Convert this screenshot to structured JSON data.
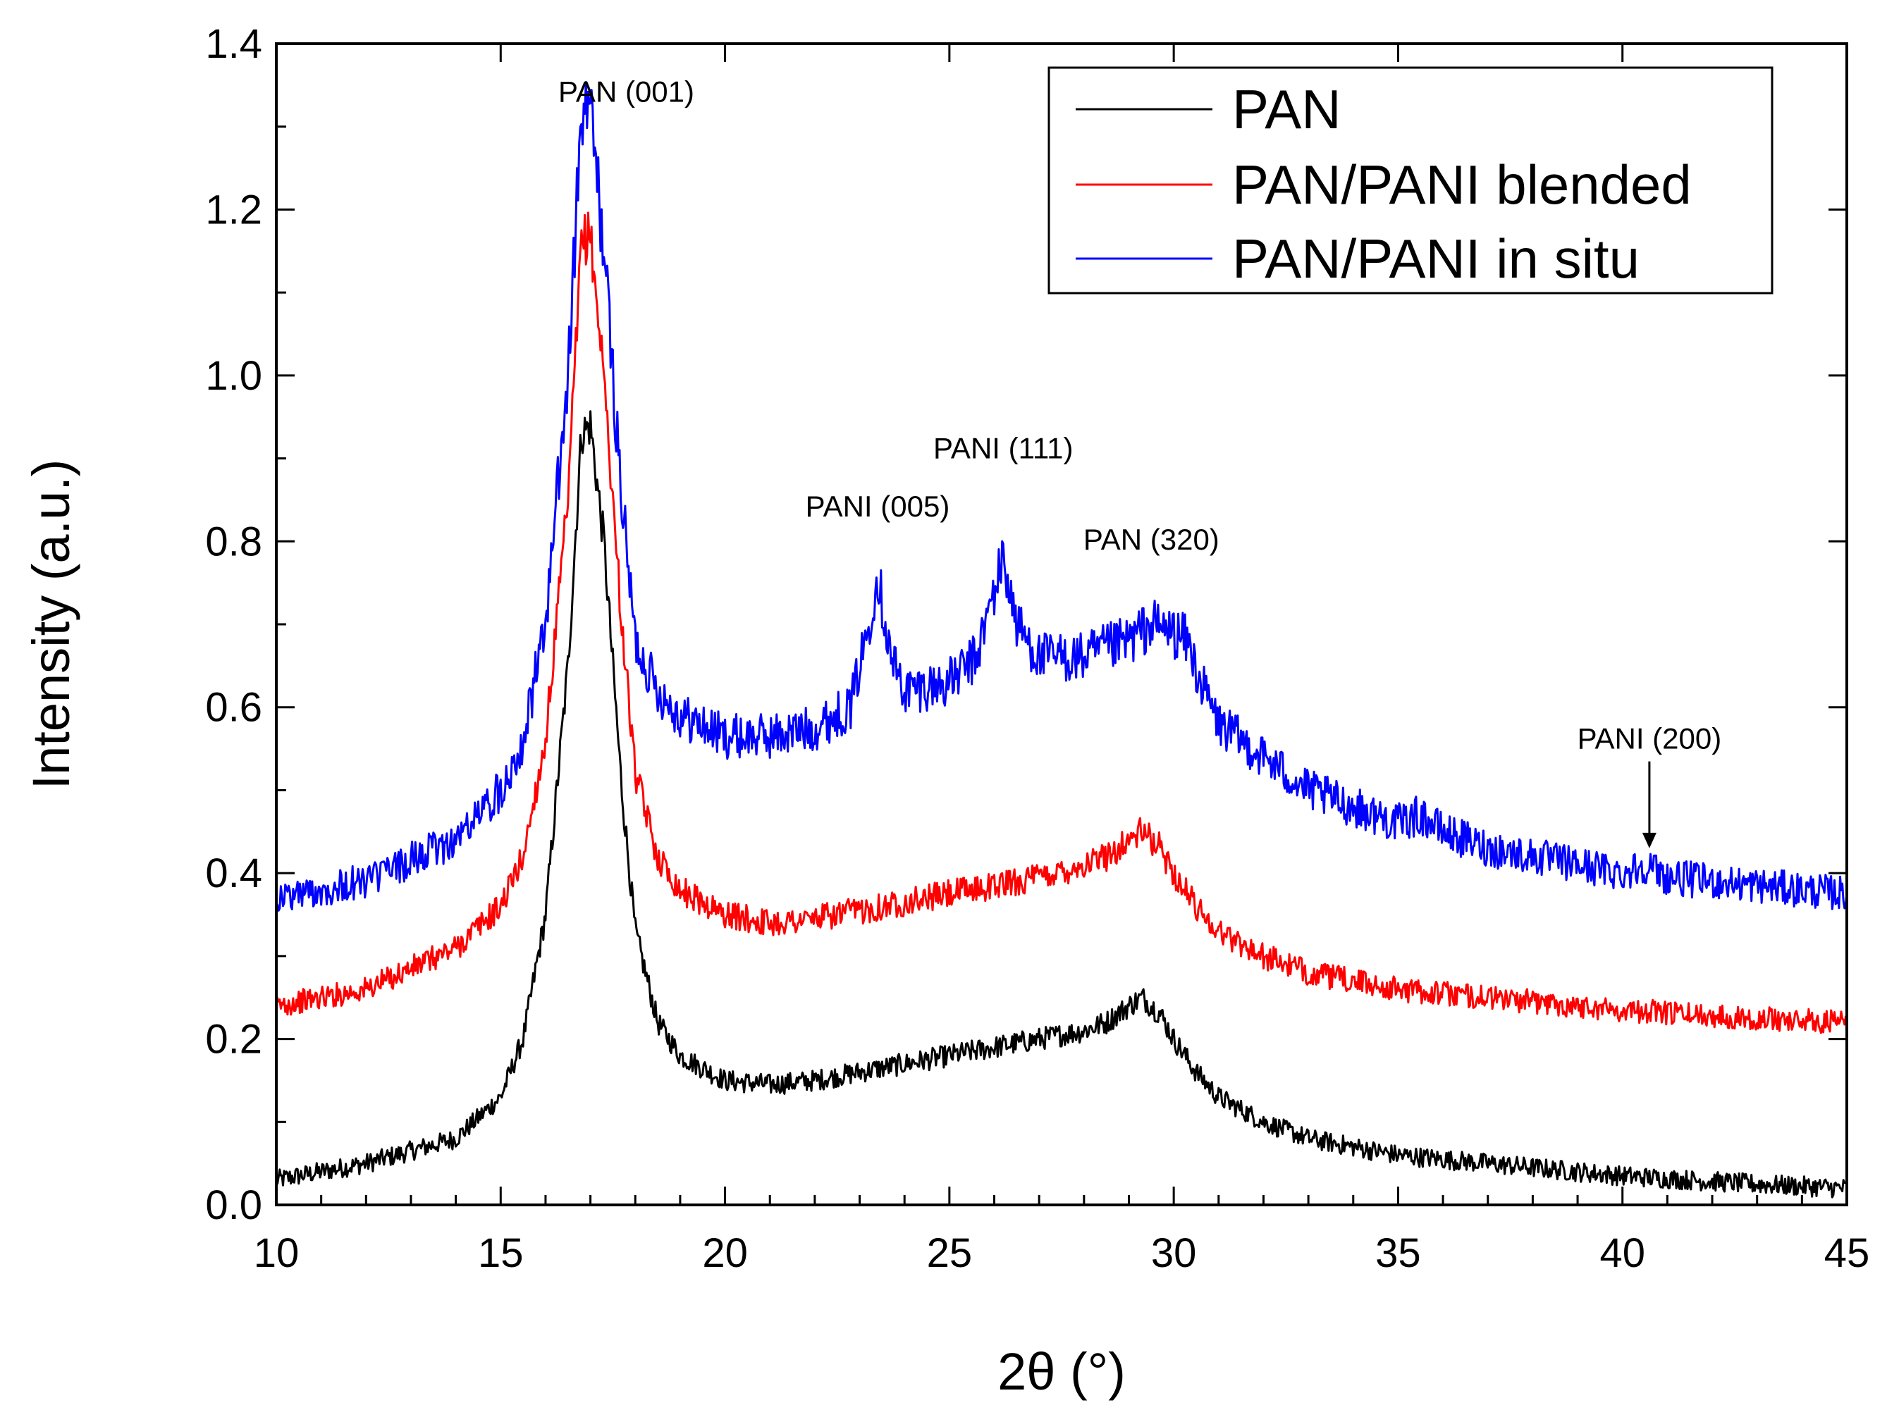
{
  "chart_data": {
    "type": "line",
    "title": "",
    "xlabel": "2θ (°)",
    "ylabel": "Intensity (a.u.)",
    "xlim": [
      10,
      45
    ],
    "ylim": [
      0.0,
      1.4
    ],
    "x_ticks": [
      10,
      15,
      20,
      25,
      30,
      35,
      40,
      45
    ],
    "x_tick_labels": [
      "10",
      "15",
      "20",
      "25",
      "30",
      "35",
      "40",
      "45"
    ],
    "y_ticks": [
      0.0,
      0.2,
      0.4,
      0.6,
      0.8,
      1.0,
      1.2,
      1.4
    ],
    "y_tick_labels": [
      "0.0",
      "0.2",
      "0.4",
      "0.6",
      "0.8",
      "1.0",
      "1.2",
      "1.4"
    ],
    "grid": false,
    "legend_position": "top-right",
    "series": [
      {
        "name": "PAN",
        "color": "#000000",
        "x": [
          10,
          12,
          14,
          15,
          15.5,
          16,
          16.5,
          16.8,
          17,
          17.3,
          17.7,
          18,
          18.5,
          19,
          20,
          21,
          22,
          23,
          24,
          25,
          26,
          27,
          28,
          28.5,
          29,
          29.3,
          29.7,
          30,
          30.5,
          31,
          32,
          33,
          35,
          37,
          40,
          43,
          45
        ],
        "y": [
          0.03,
          0.05,
          0.08,
          0.13,
          0.2,
          0.35,
          0.65,
          0.93,
          0.94,
          0.8,
          0.5,
          0.33,
          0.22,
          0.18,
          0.15,
          0.145,
          0.15,
          0.16,
          0.17,
          0.18,
          0.19,
          0.2,
          0.21,
          0.22,
          0.24,
          0.25,
          0.23,
          0.2,
          0.16,
          0.13,
          0.1,
          0.08,
          0.06,
          0.05,
          0.035,
          0.025,
          0.02
        ]
      },
      {
        "name": "PAN/PANI blended",
        "color": "#ff0000",
        "x": [
          10,
          12,
          14,
          15,
          15.5,
          16,
          16.5,
          16.8,
          17,
          17.3,
          17.7,
          18,
          18.5,
          19,
          20,
          21,
          22,
          23,
          24,
          25,
          26,
          27,
          28,
          28.5,
          29,
          29.3,
          29.7,
          30,
          30.5,
          31,
          32,
          33,
          35,
          37,
          40,
          43,
          45
        ],
        "y": [
          0.24,
          0.26,
          0.31,
          0.36,
          0.42,
          0.56,
          0.85,
          1.16,
          1.17,
          1.0,
          0.7,
          0.52,
          0.42,
          0.38,
          0.35,
          0.34,
          0.345,
          0.355,
          0.365,
          0.375,
          0.385,
          0.395,
          0.41,
          0.42,
          0.44,
          0.45,
          0.43,
          0.4,
          0.36,
          0.33,
          0.3,
          0.28,
          0.26,
          0.25,
          0.235,
          0.225,
          0.22
        ]
      },
      {
        "name": "PAN/PANI in situ",
        "color": "#0000ff",
        "x": [
          10,
          12,
          14,
          15,
          15.5,
          16,
          16.5,
          16.8,
          17,
          17.3,
          17.7,
          18,
          18.5,
          19,
          20,
          21,
          22,
          22.8,
          23.2,
          23.4,
          23.7,
          24,
          25,
          25.6,
          26,
          26.2,
          26.5,
          27,
          28,
          29,
          29.5,
          30,
          30.3,
          30.6,
          31,
          32,
          33,
          34,
          35,
          35.5,
          36,
          37,
          38,
          39,
          40,
          40.5,
          41,
          42,
          43,
          44,
          45
        ],
        "y": [
          0.37,
          0.39,
          0.44,
          0.5,
          0.56,
          0.7,
          1.0,
          1.31,
          1.32,
          1.15,
          0.85,
          0.68,
          0.62,
          0.59,
          0.565,
          0.565,
          0.575,
          0.6,
          0.7,
          0.76,
          0.66,
          0.62,
          0.63,
          0.66,
          0.74,
          0.78,
          0.7,
          0.66,
          0.66,
          0.68,
          0.7,
          0.69,
          0.68,
          0.63,
          0.58,
          0.54,
          0.5,
          0.48,
          0.46,
          0.47,
          0.45,
          0.43,
          0.42,
          0.41,
          0.4,
          0.41,
          0.395,
          0.39,
          0.385,
          0.38,
          0.375
        ]
      }
    ],
    "annotations": [
      {
        "text": "PAN (001)",
        "x": 17.8,
        "y": 1.33
      },
      {
        "text": "PANI (005)",
        "x": 23.4,
        "y": 0.83
      },
      {
        "text": "PANI (111)",
        "x": 26.2,
        "y": 0.9
      },
      {
        "text": "PAN (320)",
        "x": 29.5,
        "y": 0.79
      },
      {
        "text": "PANI (200)",
        "x": 40.6,
        "y": 0.55,
        "arrow_to_y": 0.43
      }
    ]
  }
}
